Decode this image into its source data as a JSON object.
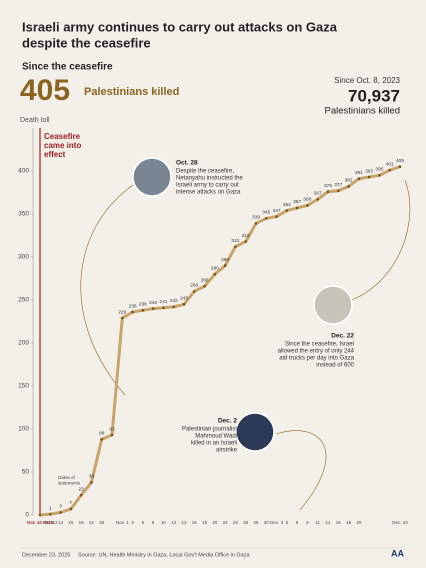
{
  "chart_data": {
    "type": "line",
    "title": "Israeli army continues to carry out attacks on Gaza despite the ceasefire",
    "subtitle": "Since the ceasefire",
    "headline": {
      "value": 405,
      "label": "Palestinians killed"
    },
    "overall": {
      "since": "Since Oct. 8, 2023",
      "value": "70,937",
      "label": "Palestinians killed"
    },
    "y_label": "Death toll",
    "ceasefire_label": "Ceasefire came into effect",
    "statements_label": "Dates of statements",
    "categories": [
      "Oct. 10 2025",
      "Oct. 12",
      "14",
      "16",
      "19",
      "22",
      "25",
      null,
      "Nov. 1",
      "3",
      "5",
      "8",
      "10",
      "12",
      "13",
      "16",
      "19",
      "20",
      "22",
      "23",
      "25",
      "29",
      "30",
      "Dec. 3",
      "6",
      "8",
      "9",
      "11",
      "14",
      "16",
      "18",
      "20",
      null,
      null,
      null,
      "Dec. 23"
    ],
    "series": [
      {
        "name": "Death toll",
        "color": "#c9a46a",
        "values": [
          0,
          1,
          3,
          7,
          23,
          38,
          88,
          93,
          229,
          236,
          238,
          240,
          241,
          242,
          245,
          260,
          266,
          280,
          290,
          312,
          318,
          339,
          345,
          347,
          354,
          357,
          360,
          367,
          376,
          377,
          382,
          391,
          393,
          395,
          401,
          405
        ]
      }
    ],
    "ylim": [
      0,
      450
    ],
    "yticks": [
      0,
      50,
      100,
      150,
      200,
      250,
      300,
      350,
      400
    ],
    "annotations": [
      {
        "date": "Oct. 28",
        "text": [
          "Despite the ceasefire,",
          "Netanyahu instructed the",
          "Israeli army to carry out",
          "intense attacks on Gaza"
        ]
      },
      {
        "date": "Dec. 22",
        "text": [
          "Since the ceasefire, Israel",
          "allowed the entry of only 244",
          "aid trucks per day into Gaza",
          "instead of 600"
        ]
      },
      {
        "date": "Dec. 2",
        "text": [
          "Palestinian journalist",
          "Mahmoud Wadi",
          "killed in an Israeli",
          "airstrike"
        ]
      }
    ],
    "footer": {
      "date": "December 23, 2025",
      "source": "Source: UN, Health Ministry in Gaza, Local Gov't Media Office in Gaza",
      "logo": "AA"
    }
  }
}
